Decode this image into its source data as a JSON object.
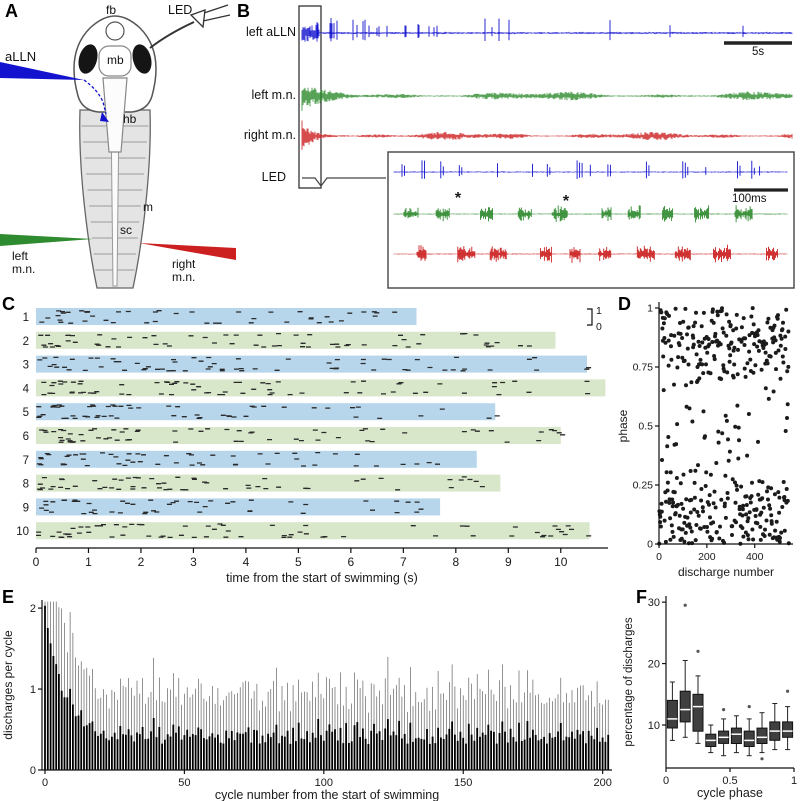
{
  "panel_labels": {
    "A": "A",
    "B": "B",
    "C": "C",
    "D": "D",
    "E": "E",
    "F": "F"
  },
  "colors": {
    "blue": "#1212cf",
    "green": "#2f8b2f",
    "red": "#cc2020",
    "raster_blue": "#b7d6ec",
    "raster_green": "#d8e6ca",
    "box_fill": "#3f3f3f",
    "axis": "#1a1a1a"
  },
  "panelA": {
    "labels": {
      "fb": "fb",
      "mb": "mb",
      "hb": "hb",
      "m": "m",
      "sc": "sc",
      "aLLN": "aLLN",
      "led": "LED",
      "left_mn": "left m.n.",
      "right_mn": "right m.n."
    }
  },
  "chart_data": [
    {
      "id": "B",
      "type": "line",
      "kind": "electrophysiology-traces",
      "series": [
        {
          "name": "left aLLN",
          "color": "blue",
          "seed": 101,
          "style": "spike-train"
        },
        {
          "name": "left m.n.",
          "color": "green",
          "seed": 202,
          "style": "emg-burst"
        },
        {
          "name": "right m.n.",
          "color": "red",
          "seed": 303,
          "style": "emg-burst"
        }
      ],
      "led_label": "LED",
      "scalebar_main": "5s",
      "scalebar_inset": "100ms",
      "asterisk": "*",
      "asterisks": [
        {
          "x": 222,
          "y": 203
        },
        {
          "x": 330,
          "y": 206
        }
      ]
    },
    {
      "id": "C",
      "type": "raster",
      "xlabel": "time from the start of swimming (s)",
      "xticks": [
        0,
        1,
        2,
        3,
        4,
        5,
        6,
        7,
        8,
        9,
        10
      ],
      "xmax": 10.9,
      "phase_scale": {
        "top": "1",
        "bottom": "0"
      },
      "trials": [
        {
          "label": "1",
          "color": "raster_blue",
          "duration": 7.25
        },
        {
          "label": "2",
          "color": "raster_green",
          "duration": 9.9
        },
        {
          "label": "3",
          "color": "raster_blue",
          "duration": 10.5
        },
        {
          "label": "4",
          "color": "raster_green",
          "duration": 10.85
        },
        {
          "label": "5",
          "color": "raster_blue",
          "duration": 8.75
        },
        {
          "label": "6",
          "color": "raster_green",
          "duration": 10.0
        },
        {
          "label": "7",
          "color": "raster_blue",
          "duration": 8.4
        },
        {
          "label": "8",
          "color": "raster_green",
          "duration": 8.85
        },
        {
          "label": "9",
          "color": "raster_blue",
          "duration": 7.7
        },
        {
          "label": "10",
          "color": "raster_green",
          "duration": 10.55
        }
      ],
      "dash_seed": 911,
      "dashes_per_second": 6.5
    },
    {
      "id": "D",
      "type": "scatter",
      "xlabel": "discharge number",
      "ylabel": "phase",
      "xticks": [
        0,
        200,
        400
      ],
      "yticks": [
        0,
        0.25,
        0.5,
        0.75,
        1
      ],
      "xlim": [
        0,
        560
      ],
      "ylim": [
        0,
        1
      ],
      "n_points": 430,
      "seed": 417,
      "phase_clusters": [
        {
          "weight": 0.42,
          "mean": 0.12,
          "sd": 0.09
        },
        {
          "weight": 0.33,
          "mean": 0.86,
          "sd": 0.08
        },
        {
          "weight": 0.25,
          "uniform": true
        }
      ]
    },
    {
      "id": "E",
      "type": "bar",
      "xlabel": "cycle number from the start of swimming",
      "ylabel": "discharges per cycle",
      "xticks": [
        0,
        50,
        100,
        150,
        200
      ],
      "yticks": [
        0,
        1,
        2
      ],
      "xlim": [
        0,
        205
      ],
      "ylim": [
        0,
        2.1
      ],
      "n_bars": 203,
      "seed": 73,
      "decay": {
        "start": 1.6,
        "tau": 6.5,
        "base": 0.32,
        "noise": 0.13
      },
      "error": {
        "min": 0.3,
        "scale": 0.55
      }
    },
    {
      "id": "F",
      "type": "box",
      "xlabel": "cycle phase",
      "ylabel": "percentage of discharges",
      "xticks": [
        0,
        0.5,
        1
      ],
      "yticks": [
        10,
        20,
        30
      ],
      "xlim": [
        0,
        1
      ],
      "ylim": [
        3,
        31
      ],
      "boxes": [
        {
          "phase": 0.05,
          "lo": 7.5,
          "q1": 9.5,
          "med": 11,
          "q3": 14,
          "hi": 17,
          "outliers": []
        },
        {
          "phase": 0.15,
          "lo": 8,
          "q1": 10.5,
          "med": 12.5,
          "q3": 15.5,
          "hi": 20.5,
          "outliers": [
            29.5
          ]
        },
        {
          "phase": 0.25,
          "lo": 7,
          "q1": 9,
          "med": 13,
          "q3": 15,
          "hi": 18,
          "outliers": [
            22
          ]
        },
        {
          "phase": 0.35,
          "lo": 5.5,
          "q1": 6.5,
          "med": 7.5,
          "q3": 8.5,
          "hi": 10,
          "outliers": []
        },
        {
          "phase": 0.45,
          "lo": 5,
          "q1": 7,
          "med": 8,
          "q3": 9,
          "hi": 11,
          "outliers": [
            12.5
          ]
        },
        {
          "phase": 0.55,
          "lo": 5.5,
          "q1": 7,
          "med": 8.5,
          "q3": 9.5,
          "hi": 11.5,
          "outliers": []
        },
        {
          "phase": 0.65,
          "lo": 5,
          "q1": 6.5,
          "med": 7.5,
          "q3": 9,
          "hi": 11,
          "outliers": [
            13
          ]
        },
        {
          "phase": 0.75,
          "lo": 5.5,
          "q1": 7,
          "med": 8,
          "q3": 9.5,
          "hi": 12,
          "outliers": [
            4.5
          ]
        },
        {
          "phase": 0.85,
          "lo": 6,
          "q1": 7.5,
          "med": 9,
          "q3": 10.5,
          "hi": 13.5,
          "outliers": []
        },
        {
          "phase": 0.95,
          "lo": 6,
          "q1": 8,
          "med": 9,
          "q3": 10.5,
          "hi": 13,
          "outliers": [
            15.5
          ]
        }
      ]
    }
  ]
}
